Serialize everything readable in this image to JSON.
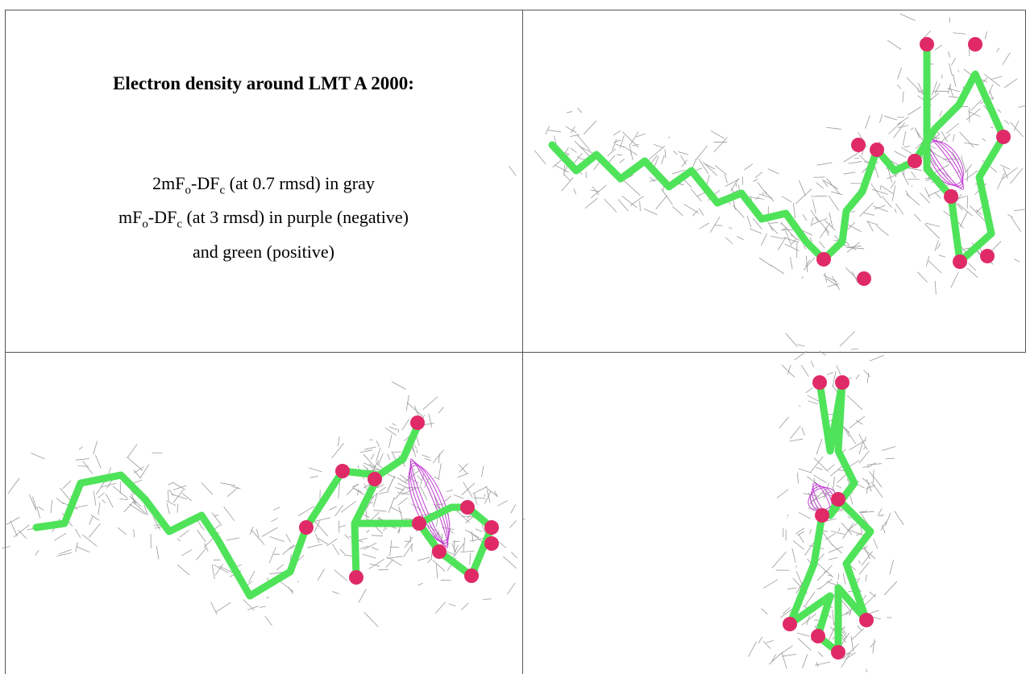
{
  "text_cell": {
    "heading": "Electron density around LMT A 2000:",
    "lines": [
      [
        {
          "text": "2mF"
        },
        {
          "sub": "o"
        },
        {
          "text": "-DF"
        },
        {
          "sub": "c"
        },
        {
          "text": " (at 0.7 rmsd) in gray"
        }
      ],
      [
        {
          "text": "mF"
        },
        {
          "sub": "o"
        },
        {
          "text": "-DF"
        },
        {
          "sub": "c"
        },
        {
          "text": " (at 3 rmsd) in purple (negative)"
        }
      ],
      [
        {
          "text": "and green (positive)"
        }
      ]
    ]
  }
}
